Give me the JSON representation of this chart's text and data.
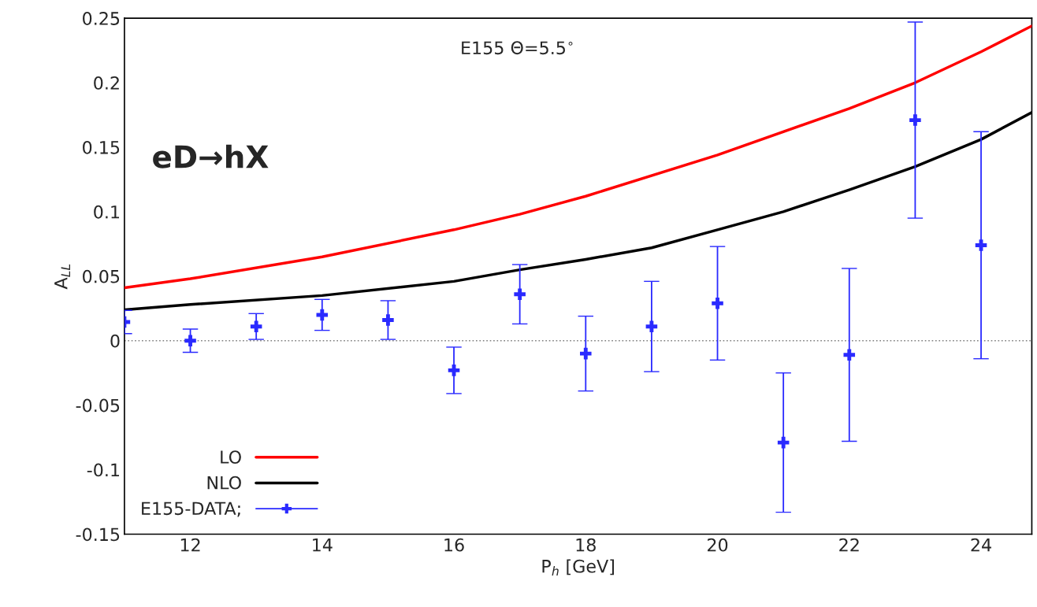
{
  "chart_data": {
    "type": "line",
    "xlabel": "P$_{h}$ [GeV]",
    "ylabel": "A$_{LL}$",
    "xlim": [
      11,
      24.77
    ],
    "ylim": [
      -0.15,
      0.25
    ],
    "xticks": [
      12,
      14,
      16,
      18,
      20,
      22,
      24
    ],
    "yticks": [
      -0.15,
      -0.1,
      -0.05,
      0,
      0.05,
      0.1,
      0.15,
      0.2,
      0.25
    ],
    "grid": false,
    "legend": "bottom left",
    "annotations": [
      "E155 Θ=5.5$^{∘}$",
      "eD→hX"
    ],
    "ref_lines": [
      {
        "axis": "y",
        "value": 0,
        "color": "#808080",
        "line_style": "dotted"
      }
    ],
    "series": [
      {
        "name": "LO",
        "type": "line",
        "color": "#ff0000",
        "line_style": "solid",
        "x": [
          11,
          12,
          14,
          16,
          17,
          18,
          20,
          22,
          23,
          24,
          24.77
        ],
        "values": [
          0.041,
          0.048,
          0.065,
          0.086,
          0.098,
          0.112,
          0.144,
          0.18,
          0.2,
          0.224,
          0.244
        ]
      },
      {
        "name": "NLO",
        "color": "#000000",
        "line_style": "solid",
        "x": [
          11,
          12,
          14,
          16,
          17,
          18,
          19,
          20,
          21,
          22,
          23,
          24,
          24.77
        ],
        "values": [
          0.024,
          0.028,
          0.035,
          0.046,
          0.055,
          0.063,
          0.072,
          0.086,
          0.1,
          0.117,
          0.135,
          0.156,
          0.177
        ]
      },
      {
        "name": "E155-DATA;",
        "type": "scatter",
        "color": "#2a2aff",
        "marker": "cross",
        "x": [
          11,
          12,
          13,
          14,
          15,
          16,
          17,
          18,
          19,
          20,
          21,
          22,
          23,
          24
        ],
        "values": [
          0.0145,
          0,
          0.011,
          0.02,
          0.016,
          -0.023,
          0.036,
          -0.01,
          0.011,
          0.029,
          -0.079,
          -0.011,
          0.171,
          0.074
        ],
        "errors": [
          0.009,
          0.009,
          0.01,
          0.012,
          0.015,
          0.018,
          0.023,
          0.029,
          0.035,
          0.044,
          0.054,
          0.067,
          0.076,
          0.088
        ]
      }
    ]
  }
}
